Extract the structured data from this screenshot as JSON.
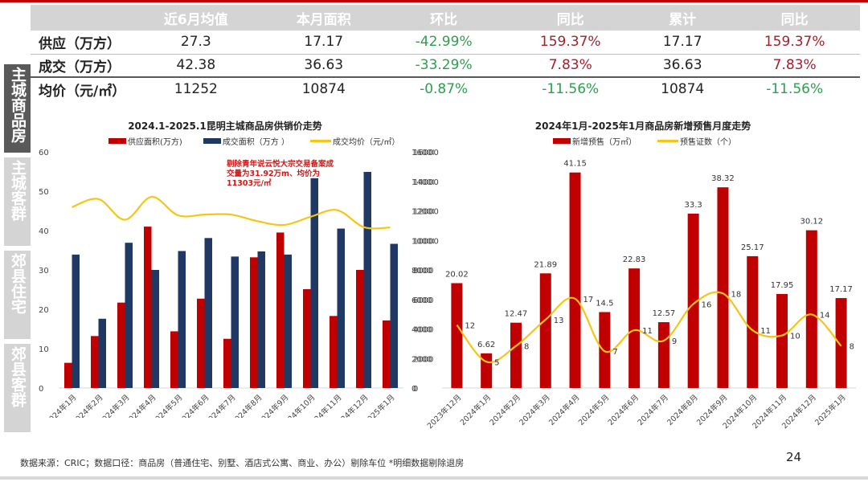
{
  "summary_table": {
    "headers": [
      "",
      "近6月均值",
      "本月面积",
      "环比",
      "同比",
      "累计",
      "同比"
    ],
    "rows": [
      {
        "label": "供应（万方）",
        "avg6": "27.3",
        "month": "17.17",
        "mom": "-42.99%",
        "yoy": "159.37%",
        "cum": "17.17",
        "cum_yoy": "159.37%"
      },
      {
        "label": "成交（万方）",
        "avg6": "42.38",
        "month": "36.63",
        "mom": "-33.29%",
        "yoy": "7.83%",
        "cum": "36.63",
        "cum_yoy": "7.83%"
      },
      {
        "label": "均价（元/㎡）",
        "avg6": "11252",
        "month": "10874",
        "mom": "-0.87%",
        "yoy": "-11.56%",
        "cum": "10874",
        "cum_yoy": "-11.56%"
      }
    ]
  },
  "side_tabs": [
    "主城商品房",
    "主城客群",
    "郊县住宅",
    "郊县客群"
  ],
  "colors": {
    "red": "#c00000",
    "navy": "#203864",
    "yellow": "#f5c518",
    "green": "#2e9e4f",
    "darkred": "#a3202e"
  },
  "footnote": "数据来源：CRIC；数据口径：商品房（普通住宅、别墅、酒店式公寓、商业、办公）剔除车位  *明细数据剔除退房",
  "page_number": "24",
  "chart_data": [
    {
      "type": "bar",
      "title": "2024.1-2025.1昆明主城商品房供销价走势",
      "categories": [
        "2024年1月",
        "2024年2月",
        "2024年3月",
        "2024年4月",
        "2024年5月",
        "2024年6月",
        "2024年7月",
        "2024年8月",
        "2024年9月",
        "2024年10月",
        "2024年11月",
        "2024年12月",
        "2025年1月"
      ],
      "series": [
        {
          "name": "供应面积(万方)",
          "type": "bar",
          "axis": "left",
          "color": "#c00000",
          "values": [
            6.4,
            13.2,
            21.7,
            41.0,
            14.4,
            22.7,
            12.5,
            33.2,
            39.5,
            25.1,
            18.3,
            30.0,
            17.17
          ]
        },
        {
          "name": "成交面积（万方 ）",
          "type": "bar",
          "axis": "left",
          "color": "#203864",
          "values": [
            33.9,
            17.6,
            36.9,
            30.0,
            34.8,
            38.1,
            33.4,
            34.7,
            33.9,
            53.3,
            40.5,
            54.9,
            36.63
          ]
        },
        {
          "name": "成交均价（元/㎡）",
          "type": "line",
          "axis": "right",
          "color": "#f5c518",
          "values": [
            12250,
            12800,
            11400,
            12950,
            11700,
            11750,
            11750,
            11300,
            11050,
            11600,
            12050,
            10900,
            10874
          ]
        }
      ],
      "ylim": [
        0,
        60
      ],
      "y_ticks": [
        0,
        10,
        20,
        30,
        40,
        50,
        60
      ],
      "y2lim": [
        0,
        16000
      ],
      "y2_ticks": [
        0,
        2000,
        4000,
        6000,
        8000,
        10000,
        12000,
        14000,
        16000
      ],
      "annotation": "剔除青年说云悦大宗交易备案成交量为31.92万m、均价为11303元/㎡",
      "legend_position": "top"
    },
    {
      "type": "bar",
      "title": "2024年1月-2025年1月商品房新增预售月度走势",
      "categories": [
        "2023年12月",
        "2024年1月",
        "2024年2月",
        "2024年3月",
        "2024年4月",
        "2024年5月",
        "2024年6月",
        "2024年7月",
        "2024年8月",
        "2024年9月",
        "2024年10月",
        "2024年11月",
        "2024年12月",
        "2025年1月"
      ],
      "series": [
        {
          "name": "新增预售（万㎡）",
          "type": "bar",
          "color": "#c00000",
          "values": [
            20.02,
            6.62,
            12.47,
            21.89,
            41.15,
            14.5,
            22.83,
            12.57,
            33.3,
            38.32,
            25.17,
            17.95,
            30.12,
            17.17
          ]
        },
        {
          "name": "预售证数（个）",
          "type": "line",
          "color": "#f5c518",
          "values": [
            12,
            5,
            8,
            13,
            17,
            7,
            11,
            9,
            16,
            18,
            11,
            10,
            14,
            8
          ]
        }
      ],
      "ylim": [
        0,
        16000
      ],
      "y_ticks": [
        0,
        2000,
        4000,
        6000,
        8000,
        10000,
        12000,
        14000,
        16000
      ],
      "legend_position": "top"
    }
  ]
}
